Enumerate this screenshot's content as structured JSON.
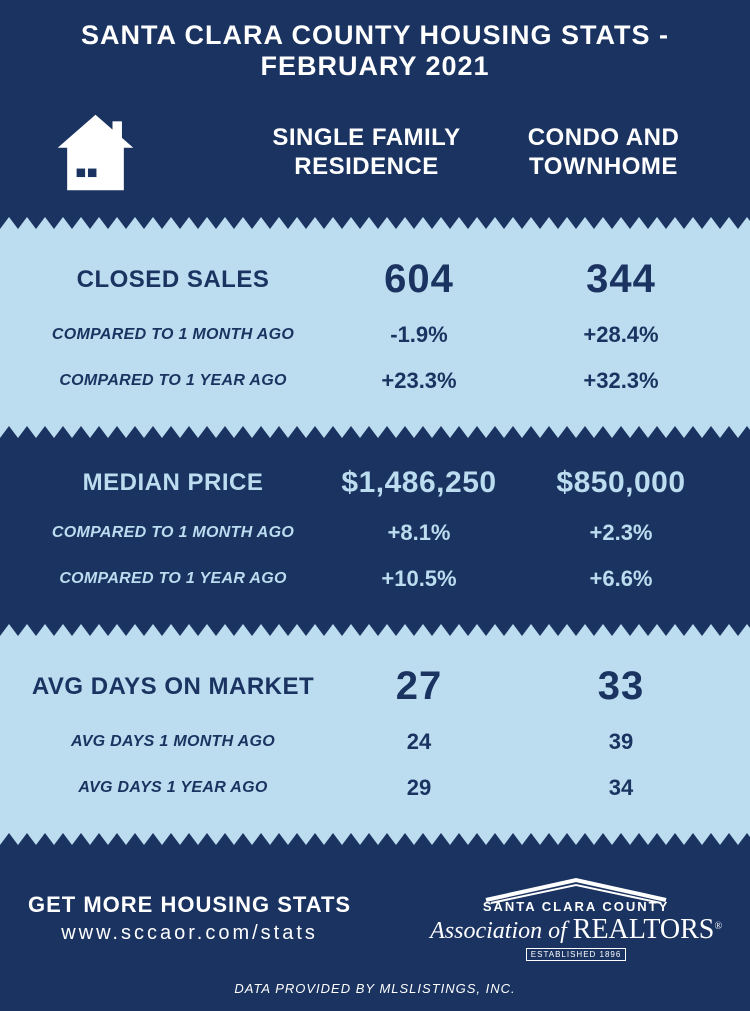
{
  "colors": {
    "dark": "#1a3360",
    "light": "#bcddf0",
    "white": "#ffffff"
  },
  "title": "SANTA CLARA COUNTY HOUSING STATS - FEBRUARY 2021",
  "columns": {
    "col1": "SINGLE FAMILY RESIDENCE",
    "col2": "CONDO AND TOWNHOME"
  },
  "sections": [
    {
      "bg": "light",
      "metric": "CLOSED SALES",
      "main": {
        "sfr": "604",
        "condo": "344",
        "size": "big"
      },
      "rows": [
        {
          "label": "COMPARED TO 1 MONTH AGO",
          "sfr": "-1.9%",
          "condo": "+28.4%"
        },
        {
          "label": "COMPARED TO 1 YEAR AGO",
          "sfr": "+23.3%",
          "condo": "+32.3%"
        }
      ]
    },
    {
      "bg": "dark",
      "metric": "MEDIAN PRICE",
      "main": {
        "sfr": "$1,486,250",
        "condo": "$850,000",
        "size": "med"
      },
      "rows": [
        {
          "label": "COMPARED TO 1 MONTH AGO",
          "sfr": "+8.1%",
          "condo": "+2.3%"
        },
        {
          "label": "COMPARED TO 1 YEAR AGO",
          "sfr": "+10.5%",
          "condo": "+6.6%"
        }
      ]
    },
    {
      "bg": "light",
      "metric": "AVG DAYS ON MARKET",
      "main": {
        "sfr": "27",
        "condo": "33",
        "size": "big"
      },
      "rows": [
        {
          "label": "AVG DAYS 1 MONTH AGO",
          "sfr": "24",
          "condo": "39"
        },
        {
          "label": "AVG DAYS 1 YEAR AGO",
          "sfr": "29",
          "condo": "34"
        }
      ]
    }
  ],
  "footer": {
    "cta": "GET MORE HOUSING STATS",
    "url": "www.sccaor.com/stats",
    "org_top": "SANTA CLARA COUNTY",
    "org_main": "Association of REALTORS",
    "org_est": "ESTABLISHED 1896",
    "provider": "DATA PROVIDED BY MLSLISTINGS, INC."
  }
}
